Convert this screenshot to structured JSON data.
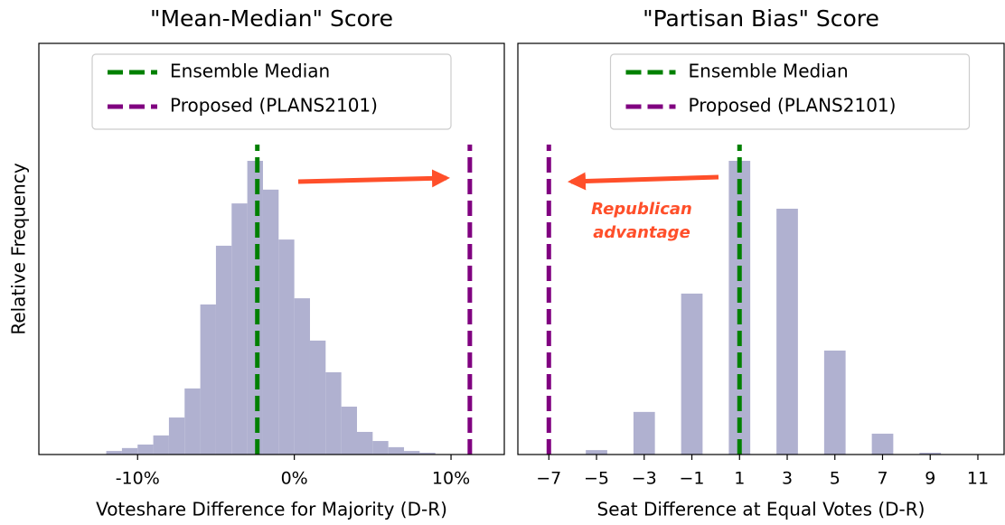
{
  "chart_data": [
    {
      "type": "histogram",
      "title": "\"Mean-Median\" Score",
      "xlabel": "Voteshare Difference for Majority (D-R)",
      "ylabel": "Relative Frequency",
      "bins": [
        -12,
        -11,
        -10,
        -9,
        -8,
        -7,
        -6,
        -5,
        -4,
        -3,
        -2,
        -1,
        0,
        1,
        2,
        3,
        4,
        5,
        6,
        7,
        8,
        9
      ],
      "values": [
        0.012,
        0.022,
        0.034,
        0.065,
        0.126,
        0.225,
        0.511,
        0.711,
        0.855,
        1.0,
        0.902,
        0.732,
        0.532,
        0.388,
        0.28,
        0.163,
        0.077,
        0.046,
        0.025,
        0.012,
        0.006
      ],
      "color": "#b0b1d0",
      "xlim": [
        -16.3,
        13.4
      ],
      "ylim": [
        0,
        1.4
      ],
      "xticks": [
        {
          "value": -10,
          "label": "-10%"
        },
        {
          "value": 0,
          "label": "0%"
        },
        {
          "value": 10,
          "label": "10%"
        }
      ],
      "vlines": [
        {
          "name": "Ensemble Median",
          "color": "#008000",
          "value": -2.36
        },
        {
          "name": "Proposed (PLANS2101)",
          "color": "#800080",
          "value": 11.2
        }
      ],
      "legend": "upper center"
    },
    {
      "type": "bar",
      "title": "\"Partisan Bias\" Score",
      "xlabel": "Seat Difference at Equal Votes (D-R)",
      "x": [
        -5,
        -3,
        -1,
        1,
        3,
        5,
        7,
        9
      ],
      "values": [
        0.015,
        0.145,
        0.548,
        1.0,
        0.837,
        0.354,
        0.071,
        0.006
      ],
      "color": "#b0b1d0",
      "xlim": [
        -8.3,
        12.1
      ],
      "ylim": [
        0,
        1.4
      ],
      "xticks": [
        {
          "value": -7,
          "label": "−7"
        },
        {
          "value": -5,
          "label": "−5"
        },
        {
          "value": -3,
          "label": "−3"
        },
        {
          "value": -1,
          "label": "−1"
        },
        1,
        3,
        5,
        7,
        9,
        11
      ],
      "vlines": [
        {
          "name": "Ensemble Median",
          "color": "#008000",
          "value": 1
        },
        {
          "name": "Proposed (PLANS2101)",
          "color": "#800080",
          "value": -7
        }
      ],
      "annotation": [
        "Republican",
        "advantage"
      ],
      "legend": "upper center"
    }
  ]
}
